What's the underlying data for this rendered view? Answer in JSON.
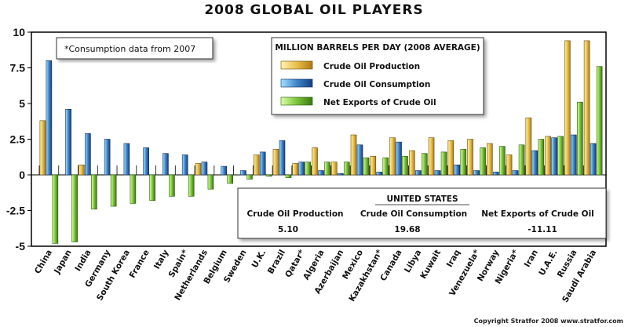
{
  "chart_data": {
    "type": "bar",
    "title": "2008 GLOBAL OIL PLAYERS",
    "xlabel": "",
    "ylabel": "",
    "ylim": [
      -5,
      10
    ],
    "yticks": [
      "10",
      "7.5",
      "5",
      "2.5",
      "0",
      "-2.5",
      "-5"
    ],
    "ytick_values": [
      10,
      7.5,
      5,
      2.5,
      0,
      -2.5,
      -5
    ],
    "legend_title": "MILLION BARRELS PER DAY (2008 AVERAGE)",
    "legend_position": "top-center",
    "note": "*Consumption data from 2007",
    "categories": [
      "China",
      "Japan",
      "India",
      "Germany",
      "South Korea",
      "France",
      "Italy",
      "Spain*",
      "Netherlands",
      "Belgium",
      "Sweden",
      "U.K.",
      "Brazil",
      "Qatar*",
      "Algeria",
      "Azerbaijan",
      "Mexico",
      "Kazakhstan*",
      "Canada",
      "Libya",
      "Kuwait",
      "Iraq",
      "Venezuela*",
      "Norway",
      "Nigeria*",
      "Iran",
      "U.A.E.",
      "Russia",
      "Saudi Arabia"
    ],
    "series": [
      {
        "name": "Crude Oil Production",
        "color": "#e8c04a",
        "values": [
          3.8,
          0,
          0.7,
          0,
          0,
          0,
          0,
          0,
          0.8,
          0,
          0,
          1.4,
          1.8,
          0.8,
          1.9,
          0.9,
          2.8,
          1.3,
          2.6,
          1.7,
          2.6,
          2.4,
          2.5,
          2.2,
          1.4,
          4.0,
          2.7,
          9.4,
          9.4
        ]
      },
      {
        "name": "Crude Oil Consumption",
        "color": "#3d86c8",
        "values": [
          8.0,
          4.6,
          2.9,
          2.5,
          2.2,
          1.9,
          1.5,
          1.4,
          0.9,
          0.6,
          0.3,
          1.6,
          2.4,
          0.9,
          0.3,
          0.1,
          2.1,
          0.2,
          2.3,
          0.3,
          0.3,
          0.7,
          0.3,
          0.2,
          0.3,
          1.7,
          2.6,
          2.8,
          2.2
        ]
      },
      {
        "name": "Net Exports of Crude Oil",
        "color": "#7cc43a",
        "values": [
          -4.8,
          -4.7,
          -2.4,
          -2.2,
          -2.0,
          -1.8,
          -1.5,
          -1.5,
          -1.0,
          -0.6,
          -0.3,
          -0.1,
          -0.2,
          0.9,
          0.9,
          0.9,
          1.2,
          1.2,
          1.3,
          1.5,
          1.6,
          1.8,
          1.9,
          2.0,
          2.1,
          2.5,
          2.7,
          5.1,
          7.6
        ]
      }
    ],
    "inset": {
      "title": "UNITED STATES",
      "headers": [
        "Crude Oil Production",
        "Crude Oil Consumption",
        "Net Exports of Crude Oil"
      ],
      "values": [
        "5.10",
        "19.68",
        "-11.11"
      ]
    },
    "copyright": "Copyright Stratfor 2008   www.stratfor.com"
  }
}
